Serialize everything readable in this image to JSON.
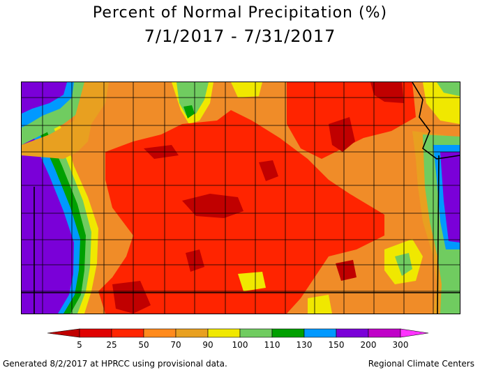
{
  "title": {
    "line1": "Percent of Normal Precipitation (%)",
    "line2": "7/1/2017 - 7/31/2017"
  },
  "legend": {
    "colors": [
      "#c00000",
      "#e00000",
      "#ff2400",
      "#ff8a1c",
      "#e8a020",
      "#f0e800",
      "#70cc60",
      "#00a000",
      "#0099ff",
      "#7a00d8",
      "#c000c8",
      "#ff33ff"
    ],
    "labels": [
      "5",
      "25",
      "50",
      "70",
      "90",
      "100",
      "110",
      "130",
      "150",
      "200",
      "300"
    ]
  },
  "footer": {
    "left": "Generated 8/2/2017 at HPRCC using provisional data.",
    "right": "Regional Climate Centers"
  }
}
